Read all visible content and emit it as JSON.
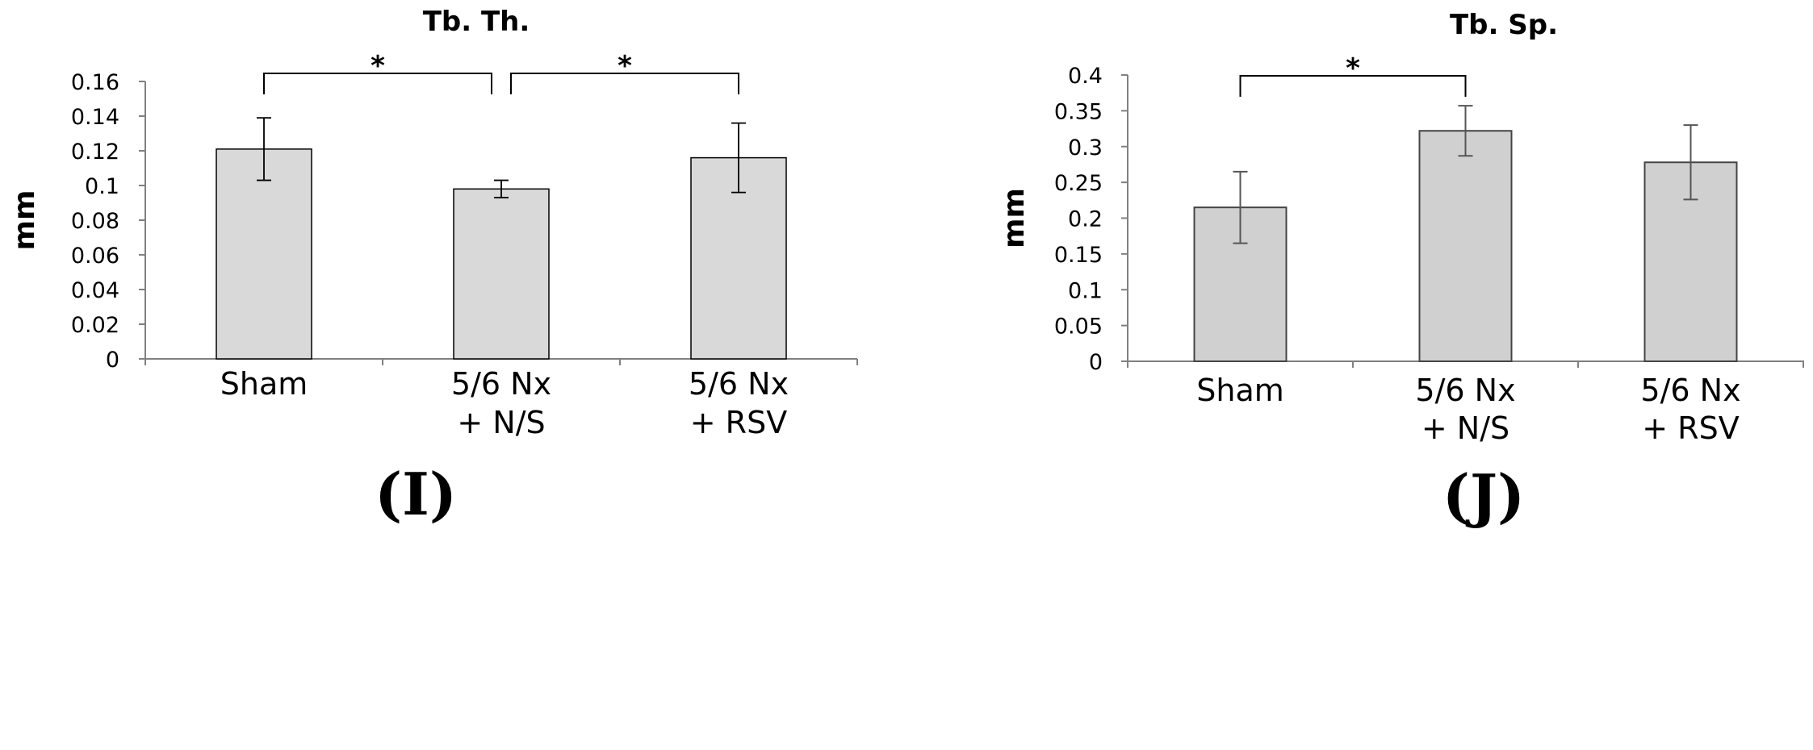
{
  "chart_data": [
    {
      "type": "bar",
      "title": "Tb. Th.",
      "ylabel": "mm",
      "xlabel": "",
      "categories": [
        [
          "Sham"
        ],
        [
          "5/6 Nx",
          "+ N/S"
        ],
        [
          "5/6 Nx",
          "+ RSV"
        ]
      ],
      "values": [
        0.121,
        0.098,
        0.116
      ],
      "errors": [
        0.018,
        0.005,
        0.02
      ],
      "ylim": [
        0,
        0.16
      ],
      "yticks": [
        "0",
        "0.02",
        "0.04",
        "0.06",
        "0.08",
        "0.1",
        "0.12",
        "0.14",
        "0.16"
      ],
      "ytick_values": [
        0,
        0.02,
        0.04,
        0.06,
        0.08,
        0.1,
        0.12,
        0.14,
        0.16
      ],
      "significance": [
        {
          "from": 0,
          "to": 1,
          "label": "*"
        },
        {
          "from": 1,
          "to": 2,
          "label": "*"
        }
      ],
      "panel_label": "(I)",
      "bar_color": "#d9d9d9"
    },
    {
      "type": "bar",
      "title": "Tb. Sp.",
      "ylabel": "mm",
      "xlabel": "",
      "categories": [
        [
          "Sham"
        ],
        [
          "5/6 Nx",
          "+ N/S"
        ],
        [
          "5/6 Nx",
          "+ RSV"
        ]
      ],
      "values": [
        0.215,
        0.322,
        0.278
      ],
      "errors": [
        0.05,
        0.035,
        0.052
      ],
      "ylim": [
        0,
        0.4
      ],
      "yticks": [
        "0",
        "0.05",
        "0.1",
        "0.15",
        "0.2",
        "0.25",
        "0.3",
        "0.35",
        "0.4"
      ],
      "ytick_values": [
        0,
        0.05,
        0.1,
        0.15,
        0.2,
        0.25,
        0.3,
        0.35,
        0.4
      ],
      "significance": [
        {
          "from": 0,
          "to": 1,
          "label": "*"
        }
      ],
      "panel_label": "(J)",
      "bar_color": "#d0d0d0"
    }
  ]
}
